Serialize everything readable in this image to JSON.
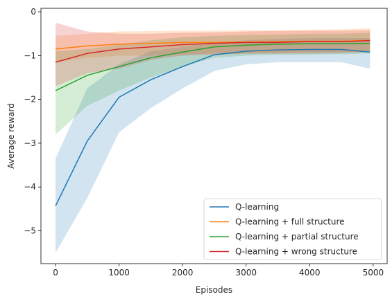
{
  "chart_data": {
    "type": "line",
    "title": "",
    "xlabel": "Episodes",
    "ylabel": "Average reward",
    "xlim": [
      -230,
      5220
    ],
    "ylim": [
      -5.75,
      0.08
    ],
    "xticks": [
      0,
      1000,
      2000,
      3000,
      4000,
      5000
    ],
    "yticks": [
      0,
      -1,
      -2,
      -3,
      -4,
      -5
    ],
    "grid": false,
    "legend_position": "lower-right",
    "x": [
      0,
      500,
      1000,
      1500,
      2000,
      2500,
      3000,
      3500,
      4000,
      4500,
      4950
    ],
    "series": [
      {
        "name": "Q-learning",
        "color": "#1f77b4",
        "values": [
          -4.43,
          -2.95,
          -1.95,
          -1.55,
          -1.25,
          -0.98,
          -0.9,
          -0.87,
          -0.86,
          -0.86,
          -0.92
        ],
        "lower": [
          -5.5,
          -4.25,
          -2.75,
          -2.2,
          -1.75,
          -1.35,
          -1.2,
          -1.15,
          -1.15,
          -1.15,
          -1.3
        ],
        "upper": [
          -3.35,
          -1.75,
          -1.2,
          -0.9,
          -0.8,
          -0.7,
          -0.65,
          -0.62,
          -0.6,
          -0.6,
          -0.6
        ]
      },
      {
        "name": "Q-learning + full structure",
        "color": "#ff7f0e",
        "values": [
          -0.85,
          -0.78,
          -0.74,
          -0.72,
          -0.7,
          -0.7,
          -0.69,
          -0.68,
          -0.67,
          -0.67,
          -0.65
        ],
        "lower": [
          -1.15,
          -1.05,
          -1.0,
          -1.0,
          -0.98,
          -0.95,
          -0.95,
          -0.95,
          -0.93,
          -0.93,
          -0.9
        ],
        "upper": [
          -0.55,
          -0.5,
          -0.45,
          -0.44,
          -0.43,
          -0.43,
          -0.42,
          -0.42,
          -0.41,
          -0.4,
          -0.38
        ]
      },
      {
        "name": "Q-learning + partial structure",
        "color": "#2ca02c",
        "values": [
          -1.8,
          -1.45,
          -1.25,
          -1.05,
          -0.92,
          -0.8,
          -0.76,
          -0.74,
          -0.73,
          -0.73,
          -0.72
        ],
        "lower": [
          -2.8,
          -2.15,
          -1.8,
          -1.5,
          -1.25,
          -1.05,
          -1.0,
          -0.98,
          -0.98,
          -0.97,
          -0.95
        ],
        "upper": [
          -0.9,
          -0.85,
          -0.75,
          -0.65,
          -0.58,
          -0.55,
          -0.53,
          -0.52,
          -0.5,
          -0.5,
          -0.48
        ]
      },
      {
        "name": "Q-learning + wrong structure",
        "color": "#d62728",
        "values": [
          -1.15,
          -0.95,
          -0.85,
          -0.8,
          -0.75,
          -0.72,
          -0.7,
          -0.7,
          -0.68,
          -0.68,
          -0.66
        ],
        "lower": [
          -1.7,
          -1.4,
          -1.3,
          -1.1,
          -1.0,
          -0.98,
          -0.96,
          -0.95,
          -0.95,
          -0.94,
          -0.92
        ],
        "upper": [
          -0.25,
          -0.45,
          -0.5,
          -0.5,
          -0.48,
          -0.47,
          -0.45,
          -0.44,
          -0.43,
          -0.43,
          -0.42
        ]
      }
    ]
  }
}
